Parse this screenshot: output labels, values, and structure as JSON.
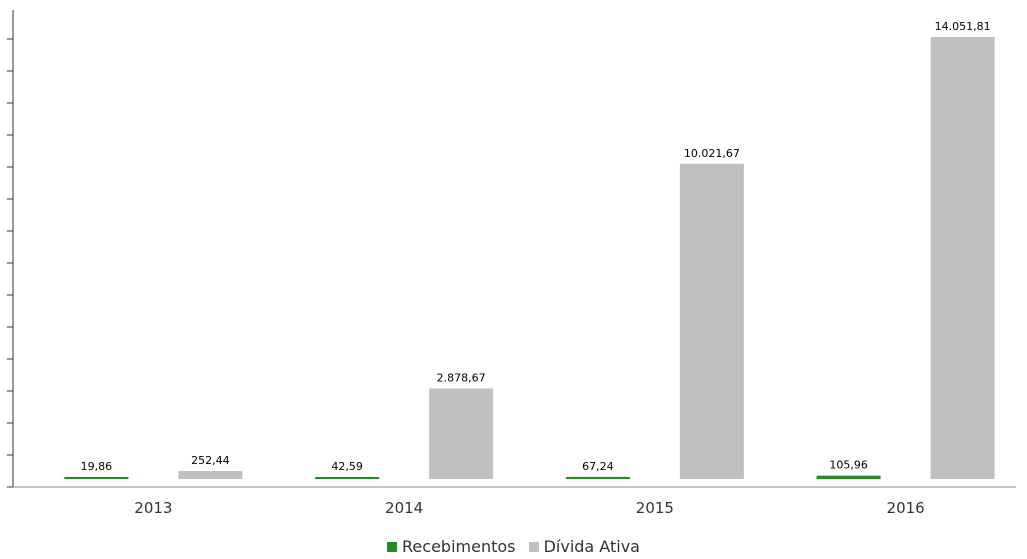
{
  "chart_data": {
    "type": "bar",
    "categories": [
      "2013",
      "2014",
      "2015",
      "2016"
    ],
    "series": [
      {
        "name": "Recebimentos",
        "color": "#228B22",
        "values": [
          19.86,
          42.59,
          67.24,
          105.96
        ],
        "labels": [
          "19,86",
          "42,59",
          "67,24",
          "105,96"
        ]
      },
      {
        "name": "Dívida Ativa",
        "color": "#C0C0C0",
        "values": [
          252.44,
          2878.67,
          10021.67,
          14051.81
        ],
        "labels": [
          "252,44",
          "2.878,67",
          "10.021,67",
          "14.051,81"
        ]
      }
    ],
    "ylim": [
      0,
      14051.81
    ],
    "grid": false,
    "legend": "bottom-center",
    "title": "",
    "xlabel": "",
    "ylabel": ""
  }
}
